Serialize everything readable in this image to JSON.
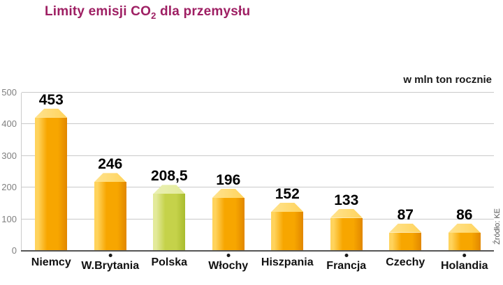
{
  "title": {
    "prefix": "Limity emisji CO",
    "sub": "2",
    "suffix": " dla przemysłu"
  },
  "unit_label": "w mln ton rocznie",
  "source": "Źródło: KE",
  "chart_data": {
    "type": "bar",
    "title": "Limity emisji CO2 dla przemysłu",
    "categories": [
      "Niemcy",
      "W.Brytania",
      "Polska",
      "Włochy",
      "Hiszpania",
      "Francja",
      "Czechy",
      "Holandia"
    ],
    "values": [
      453,
      246,
      208.5,
      196,
      152,
      133,
      87,
      86
    ],
    "value_labels": [
      "453",
      "246",
      "208,5",
      "196",
      "152",
      "133",
      "87",
      "86"
    ],
    "ylabel": "w mln ton rocznie",
    "ylim": [
      0,
      500
    ],
    "yticks": [
      0,
      100,
      200,
      300,
      400,
      500
    ],
    "grid": true,
    "legend": "none",
    "highlight_category": "Polska",
    "colors": {
      "title": "#9e1f63",
      "bar_light": "#ffd35c",
      "bar_main": "#f7a600",
      "bar_dark": "#e18700",
      "bar_top": "#ffe38f",
      "highlight_light": "#e3ea9b",
      "highlight_main": "#c5d24a",
      "highlight_dark": "#a9bc2f",
      "highlight_top": "#eaf0b4",
      "grid": "#c9c9c9",
      "axis": "#555555",
      "tick_text": "#808080"
    }
  }
}
